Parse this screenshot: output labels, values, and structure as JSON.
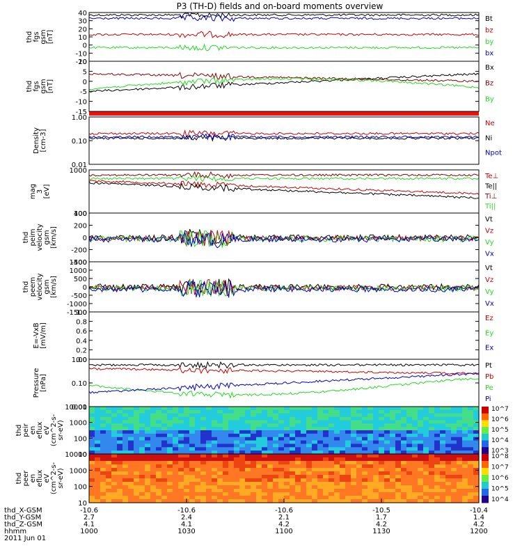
{
  "title": "P3 (TH-D) fields and on-board moments overview",
  "colors": {
    "black": "#000000",
    "red": "#cc0000",
    "green": "#22dd22",
    "blue": "#0000cc",
    "darkred": "#8b0000"
  },
  "chart_data": [
    {
      "type": "line",
      "ylabel": [
        "thd",
        "fgs",
        "gsm",
        "[nT]"
      ],
      "yticks": [
        "40",
        "30",
        "20",
        "10",
        "0",
        "-10",
        "-20"
      ],
      "ylim": [
        -20,
        40
      ],
      "series": [
        {
          "name": "Bt",
          "color": "black"
        },
        {
          "name": "bz",
          "color": "red"
        },
        {
          "name": "by",
          "color": "green"
        },
        {
          "name": "bx",
          "color": "blue"
        }
      ]
    },
    {
      "type": "line",
      "ylabel": [
        "thd",
        "fgs",
        "gsm",
        "[nT]"
      ],
      "yticks": [
        "10",
        "5",
        "0",
        "-5",
        "-10",
        "-15"
      ],
      "ylim": [
        -15,
        12
      ],
      "series": [
        {
          "name": "Bx",
          "color": "black"
        },
        {
          "name": "Bz",
          "color": "darkred"
        },
        {
          "name": "By",
          "color": "green"
        }
      ]
    },
    {
      "type": "line",
      "ylabel": [
        "Density",
        "[cm-3]"
      ],
      "yticks": [
        "1.00",
        "0.10",
        "0.01"
      ],
      "log": true,
      "series": [
        {
          "name": "Ne",
          "color": "red"
        },
        {
          "name": "Ni",
          "color": "black"
        },
        {
          "name": "Npot",
          "color": "blue"
        }
      ]
    },
    {
      "type": "line",
      "ylabel": [
        "mag",
        "3",
        "[eV]"
      ],
      "yticks": [
        "1000",
        "100"
      ],
      "log": true,
      "series": [
        {
          "name": "Te⊥",
          "color": "red"
        },
        {
          "name": "Te||",
          "color": "black"
        },
        {
          "name": "Ti⊥",
          "color": "darkred"
        },
        {
          "name": "Ti||",
          "color": "green"
        }
      ]
    },
    {
      "type": "line",
      "ylabel": [
        "thd",
        "peim",
        "velocity",
        "gsm",
        "[km/s]"
      ],
      "yticks": [
        "400",
        "200",
        "0",
        "-200",
        "-400"
      ],
      "ylim": [
        -400,
        400
      ],
      "series": [
        {
          "name": "Vt",
          "color": "black"
        },
        {
          "name": "Vz",
          "color": "red"
        },
        {
          "name": "Vy",
          "color": "green"
        },
        {
          "name": "Vx",
          "color": "blue"
        }
      ]
    },
    {
      "type": "line",
      "ylabel": [
        "thd",
        "peem",
        "velocity",
        "gsm",
        "[km/s]"
      ],
      "yticks": [
        "1500",
        "1000",
        "500",
        "0",
        "-500",
        "-1000",
        "-1500"
      ],
      "ylim": [
        -1500,
        1500
      ],
      "series": [
        {
          "name": "Vt",
          "color": "black"
        },
        {
          "name": "Vz",
          "color": "red"
        },
        {
          "name": "Vy",
          "color": "green"
        },
        {
          "name": "Vx",
          "color": "blue"
        }
      ]
    },
    {
      "type": "line",
      "ylabel": [
        "E=-VxB",
        "[mV/m]"
      ],
      "yticks": [
        "1.0",
        "0.8",
        "0.6",
        "0.4",
        "0.2",
        "0.0"
      ],
      "ylim": [
        0,
        1
      ],
      "series": [
        {
          "name": "Ez",
          "color": "red"
        },
        {
          "name": "Ey",
          "color": "green"
        },
        {
          "name": "Ex",
          "color": "blue"
        }
      ]
    },
    {
      "type": "line",
      "ylabel": [
        "Pressure",
        "[nPa]"
      ],
      "yticks": [
        "1.00",
        "0.10",
        "0.01"
      ],
      "log": true,
      "series": [
        {
          "name": "Pt",
          "color": "black"
        },
        {
          "name": "Pb",
          "color": "red"
        },
        {
          "name": "Pe",
          "color": "green"
        },
        {
          "name": "Pi",
          "color": "blue"
        }
      ]
    },
    {
      "type": "heatmap",
      "ylabel": [
        "thd",
        "peir",
        "en",
        "eflux",
        "eV",
        "(cm^2-s-",
        "sr-eV)"
      ],
      "yticks": [
        "10000",
        "1000",
        "100",
        "10"
      ],
      "log": true,
      "colorbar": [
        "10^7",
        "10^6",
        "10^5",
        "10^4",
        "10^3"
      ]
    },
    {
      "type": "heatmap",
      "ylabel": [
        "thd",
        "peer",
        "en",
        "eflux",
        "eV",
        "(cm^2-s-",
        "sr-eV)"
      ],
      "yticks": [
        "10000",
        "1000",
        "100",
        "10"
      ],
      "log": true,
      "colorbar": [
        "10^8",
        "10^7",
        "10^6",
        "10^5",
        "10^4"
      ]
    }
  ],
  "xaxis": {
    "rows": [
      {
        "label": "thd_X-GSM",
        "values": [
          "-10.6",
          "-10.6",
          "-10.6",
          "-10.5",
          "-10.4"
        ]
      },
      {
        "label": "thd_Y-GSM",
        "values": [
          "2.7",
          "2.4",
          "2.1",
          "1.7",
          "1.4"
        ]
      },
      {
        "label": "thd_Z-GSM",
        "values": [
          "4.1",
          "4.1",
          "4.2",
          "4.2",
          "4.2"
        ]
      },
      {
        "label": "hhmm",
        "values": [
          "1000",
          "1030",
          "1100",
          "1130",
          "1200"
        ]
      }
    ],
    "date": "2011 Jun 01"
  }
}
